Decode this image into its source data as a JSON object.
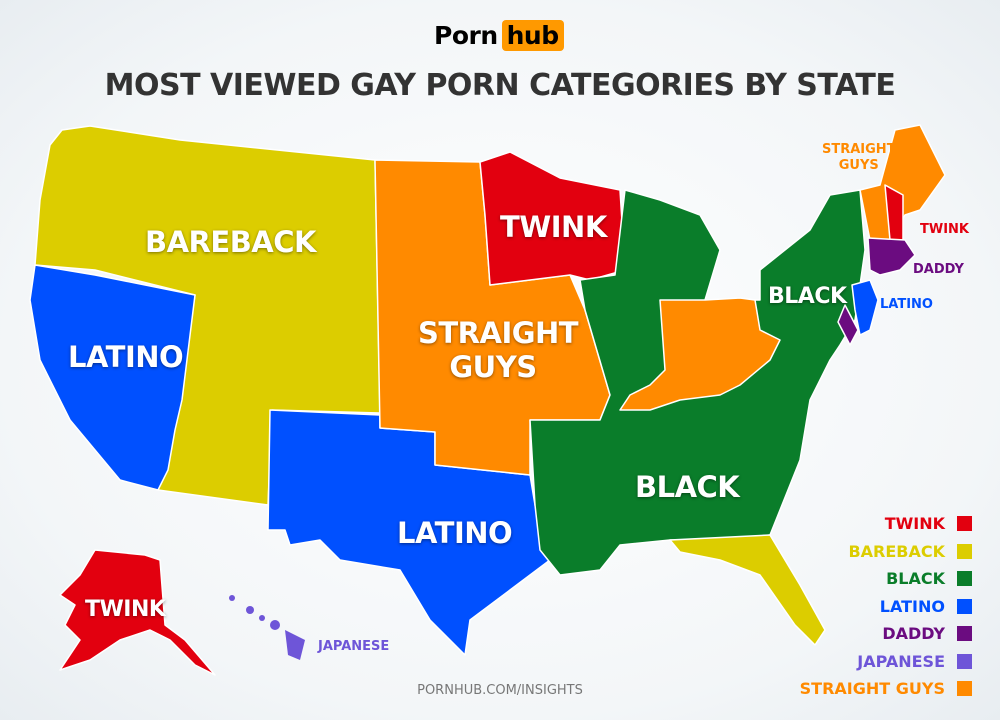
{
  "logo": {
    "part1": "Porn",
    "part2": "hub"
  },
  "title": "MOST VIEWED GAY PORN CATEGORIES BY STATE",
  "colors": {
    "twink": "#e2000f",
    "bareback": "#dccd00",
    "black": "#0a7d2a",
    "latino": "#0050ff",
    "daddy": "#6b0c80",
    "japanese": "#6e55d8",
    "straight_guys": "#ff8a00"
  },
  "map_labels": {
    "bareback": "BAREBACK",
    "twink_mn": "TWINK",
    "latino_west": "LATINO",
    "straight_guys_1": "STRAIGHT",
    "straight_guys_2": "GUYS",
    "black_pa": "BLACK",
    "black_south": "BLACK",
    "latino_tx": "LATINO",
    "twink_ak": "TWINK",
    "japanese_hi": "JAPANESE",
    "straight_guys_ne_1": "STRAIGHT",
    "straight_guys_ne_2": "GUYS",
    "twink_nh": "TWINK",
    "daddy_ne": "DADDY",
    "latino_nj": "LATINO"
  },
  "legend": [
    {
      "label": "TWINK",
      "color": "#e2000f"
    },
    {
      "label": "BAREBACK",
      "color": "#dccd00"
    },
    {
      "label": "BLACK",
      "color": "#0a7d2a"
    },
    {
      "label": "LATINO",
      "color": "#0050ff"
    },
    {
      "label": "DADDY",
      "color": "#6b0c80"
    },
    {
      "label": "JAPANESE",
      "color": "#6e55d8"
    },
    {
      "label": "STRAIGHT GUYS",
      "color": "#ff8a00"
    }
  ],
  "footer": "PORNHUB.COM/INSIGHTS"
}
